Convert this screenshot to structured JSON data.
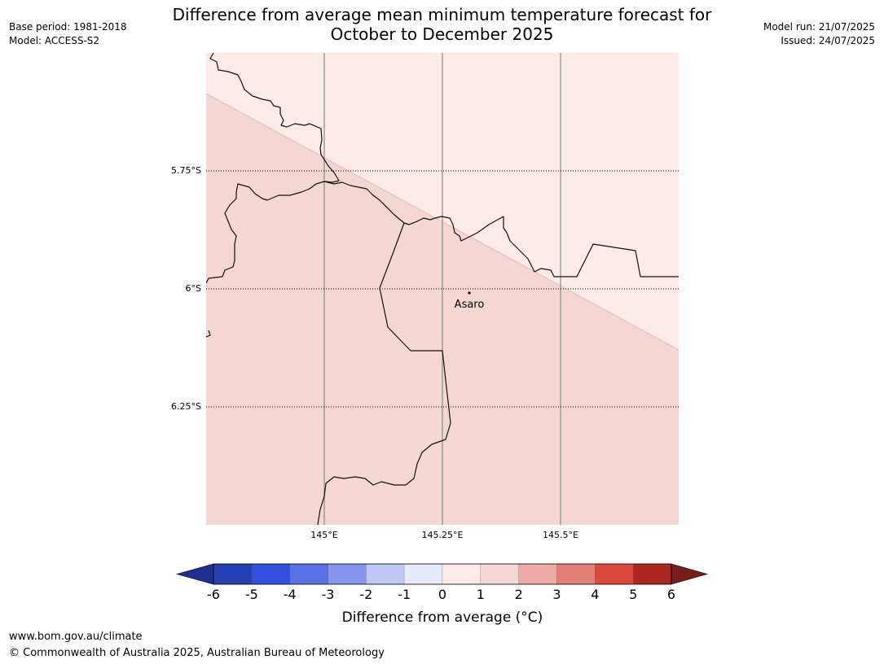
{
  "title_line1": "Difference from average mean minimum temperature forecast for",
  "title_line2": "October to December 2025",
  "meta_left": {
    "base_period": "Base period: 1981-2018",
    "model": "Model: ACCESS-S2"
  },
  "meta_right": {
    "model_run": "Model run: 21/07/2025",
    "issued": "Issued: 24/07/2025"
  },
  "map": {
    "lat_labels": [
      "5.75°S",
      "6°S",
      "6.25°S"
    ],
    "lon_labels": [
      "145°E",
      "145.25°E",
      "145.5°E"
    ],
    "place": "Asaro",
    "fill_colors": {
      "region_upper": "#fbeae8",
      "region_lower": "#f4d6d4"
    }
  },
  "colorbar": {
    "label": "Difference from average (°C)",
    "ticks": [
      "-6",
      "-5",
      "-4",
      "-3",
      "-2",
      "-1",
      "0",
      "1",
      "2",
      "3",
      "4",
      "5",
      "6"
    ],
    "colors": [
      "#1f2f8f",
      "#263fb4",
      "#3150e0",
      "#5a70e6",
      "#8696ec",
      "#c0c8f4",
      "#e7eafb",
      "#fbeae8",
      "#f4d6d4",
      "#edaba5",
      "#e47f78",
      "#dc4a3d",
      "#ab2720",
      "#7a1c18"
    ]
  },
  "footer": {
    "url": "www.bom.gov.au/climate",
    "copyright": "© Commonwealth of Australia 2025, Australian Bureau of Meteorology"
  }
}
